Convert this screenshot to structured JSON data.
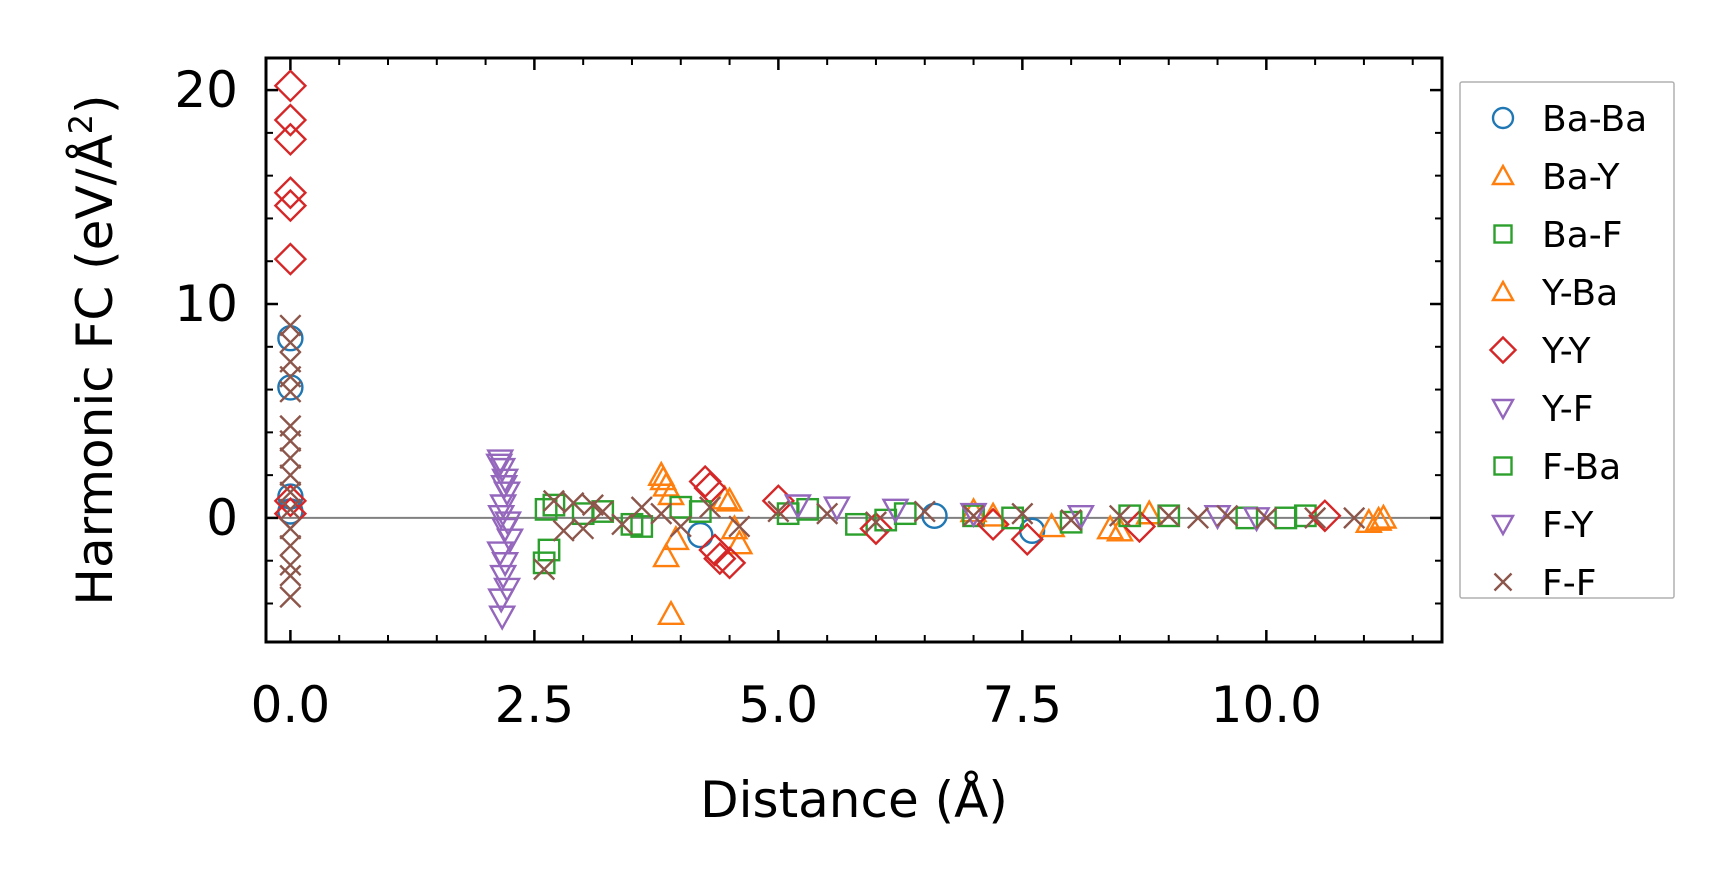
{
  "chart_data": {
    "type": "scatter",
    "title": "",
    "xlabel": "Distance (Å)",
    "ylabel": "Harmonic FC (eV/Å²)",
    "ylabel_main": "Harmonic FC (eV/Å",
    "ylabel_sup": "2",
    "ylabel_tail": ")",
    "xlim": [
      -0.25,
      11.8
    ],
    "ylim": [
      -5.8,
      21.5
    ],
    "xticks": [
      0.0,
      2.5,
      5.0,
      7.5,
      10.0
    ],
    "xtick_labels": [
      "0.0",
      "2.5",
      "5.0",
      "7.5",
      "10.0"
    ],
    "yticks": [
      0,
      10,
      20
    ],
    "ytick_labels": [
      "0",
      "10",
      "20"
    ],
    "grid": false,
    "zero_line": true,
    "legend_position": "outside-right",
    "series": [
      {
        "name": "Ba-Ba",
        "color": "#1f77b4",
        "marker": "circle",
        "x": [
          0.0,
          0.0,
          0.0,
          0.0,
          4.2,
          6.6,
          7.6
        ],
        "y": [
          8.4,
          6.1,
          1.0,
          0.3,
          -0.8,
          0.1,
          -0.6
        ]
      },
      {
        "name": "Ba-Y",
        "color": "#ff7f0e",
        "marker": "triangle-up",
        "x": [
          3.8,
          3.85,
          3.9,
          3.95,
          3.85,
          3.9,
          4.5,
          4.55,
          4.6,
          7.0,
          7.8,
          8.5,
          8.8,
          11.05,
          11.2
        ],
        "y": [
          2.0,
          1.5,
          1.1,
          -1.0,
          -1.8,
          -4.5,
          0.8,
          -0.5,
          -1.2,
          0.3,
          -0.4,
          -0.6,
          0.2,
          -0.2,
          0.0
        ]
      },
      {
        "name": "Ba-F",
        "color": "#2ca02c",
        "marker": "square",
        "x": [
          2.6,
          2.65,
          2.7,
          3.2,
          3.6,
          4.0,
          5.3,
          5.8,
          6.3,
          7.0,
          8.0,
          9.0,
          10.2,
          10.4
        ],
        "y": [
          -2.1,
          -1.5,
          0.6,
          0.3,
          -0.4,
          0.5,
          0.4,
          -0.3,
          0.2,
          0.1,
          -0.2,
          0.1,
          0.0,
          0.1
        ]
      },
      {
        "name": "Y-Ba",
        "color": "#ff7f0e",
        "marker": "triangle-up",
        "x": [
          3.82,
          4.45,
          7.2,
          8.4,
          11.15
        ],
        "y": [
          1.8,
          0.9,
          0.1,
          -0.5,
          -0.1
        ]
      },
      {
        "name": "Y-Y",
        "color": "#d62728",
        "marker": "diamond",
        "x": [
          0.0,
          0.0,
          0.0,
          0.0,
          0.0,
          0.0,
          0.0,
          0.0,
          4.25,
          4.3,
          4.35,
          4.4,
          4.5,
          5.0,
          6.0,
          7.2,
          7.55,
          8.7,
          10.6
        ],
        "y": [
          20.2,
          18.6,
          17.7,
          15.2,
          14.6,
          12.1,
          0.8,
          0.2,
          1.7,
          1.4,
          -1.5,
          -1.9,
          -2.1,
          0.8,
          -0.5,
          -0.3,
          -1.0,
          -0.4,
          0.1
        ]
      },
      {
        "name": "Y-F",
        "color": "#9467bd",
        "marker": "triangle-down",
        "x": [
          2.15,
          2.17,
          2.2,
          2.22,
          2.18,
          2.16,
          2.2,
          2.25,
          2.15,
          2.2,
          2.18,
          2.22,
          2.17
        ],
        "y": [
          2.7,
          2.3,
          1.8,
          1.2,
          0.6,
          0.1,
          -0.5,
          -1.0,
          -1.6,
          -2.1,
          -2.7,
          -3.3,
          -4.6
        ]
      },
      {
        "name": "F-Ba",
        "color": "#2ca02c",
        "marker": "square",
        "x": [
          2.62,
          3.0,
          3.5,
          4.2,
          5.1,
          6.1,
          7.4,
          8.6,
          9.8
        ],
        "y": [
          0.4,
          0.2,
          -0.3,
          0.3,
          0.2,
          -0.1,
          0.0,
          0.1,
          0.0
        ]
      },
      {
        "name": "F-Y",
        "color": "#9467bd",
        "marker": "triangle-down",
        "x": [
          2.14,
          2.19,
          2.23,
          2.16,
          5.2,
          5.6,
          6.2,
          7.0,
          8.1,
          9.5,
          9.9
        ],
        "y": [
          2.5,
          1.5,
          -0.2,
          -3.8,
          0.6,
          0.5,
          0.4,
          0.2,
          0.1,
          0.1,
          0.0
        ]
      },
      {
        "name": "F-F",
        "color": "#8c564b",
        "marker": "x",
        "x": [
          0.0,
          0.0,
          0.0,
          0.0,
          0.0,
          0.0,
          0.0,
          0.0,
          0.0,
          0.0,
          0.0,
          0.0,
          0.0,
          0.0,
          0.0,
          0.0,
          2.6,
          2.7,
          2.8,
          2.9,
          3.0,
          3.1,
          3.2,
          3.4,
          3.6,
          3.8,
          4.0,
          4.3,
          4.6,
          5.0,
          5.5,
          6.0,
          6.5,
          7.0,
          7.5,
          8.0,
          8.5,
          9.0,
          9.3,
          9.6,
          10.0,
          10.5,
          10.9
        ],
        "y": [
          9.0,
          8.2,
          7.3,
          6.6,
          5.9,
          4.3,
          3.6,
          2.8,
          2.0,
          1.2,
          0.4,
          -0.5,
          -1.3,
          -2.2,
          -2.7,
          -3.7,
          -2.4,
          0.8,
          -0.6,
          0.7,
          -0.5,
          0.6,
          0.3,
          -0.3,
          0.5,
          0.2,
          -0.4,
          0.5,
          -0.4,
          0.3,
          0.2,
          -0.2,
          0.3,
          0.1,
          0.2,
          -0.1,
          0.1,
          0.1,
          0.0,
          0.1,
          0.0,
          0.0,
          0.0
        ]
      }
    ]
  }
}
